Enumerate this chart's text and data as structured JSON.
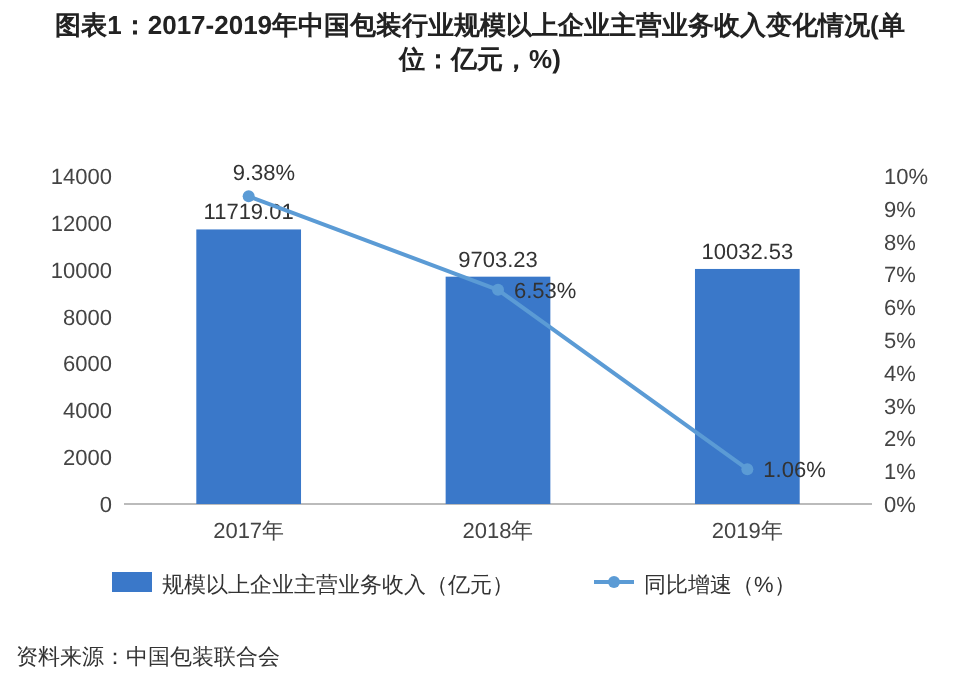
{
  "chart_data": {
    "type": "bar",
    "title": "图表1：2017-2019年中国包装行业规模以上企业主营业务收入变化情况(单位：亿元，%)",
    "categories": [
      "2017年",
      "2018年",
      "2019年"
    ],
    "series": [
      {
        "name": "规模以上企业主营业务收入（亿元）",
        "color": "#3a78c9",
        "values": [
          11719.01,
          9703.23,
          10032.53
        ]
      },
      {
        "name": "同比增速（%）",
        "type": "line",
        "axis": "y2",
        "color": "#5b9bd5",
        "marker": "circle",
        "values": [
          9.38,
          6.53,
          1.06
        ],
        "value_labels": [
          "9.38%",
          "6.53%",
          "1.06%"
        ]
      }
    ],
    "ylim": [
      0,
      14000
    ],
    "yticks": [
      0,
      2000,
      4000,
      6000,
      8000,
      10000,
      12000,
      14000
    ],
    "y2lim": [
      0,
      10
    ],
    "y2ticks": [
      {
        "value": 0,
        "label": "0%"
      },
      {
        "value": 1,
        "label": "1%"
      },
      {
        "value": 2,
        "label": "2%"
      },
      {
        "value": 3,
        "label": "3%"
      },
      {
        "value": 4,
        "label": "4%"
      },
      {
        "value": 5,
        "label": "5%"
      },
      {
        "value": 6,
        "label": "6%"
      },
      {
        "value": 7,
        "label": "7%"
      },
      {
        "value": 8,
        "label": "8%"
      },
      {
        "value": 9,
        "label": "9%"
      },
      {
        "value": 10,
        "label": "10%"
      }
    ],
    "data_labels": true,
    "grid": false,
    "legend": "bottom",
    "annotations": [
      "资料来源：中国包装联合会"
    ]
  }
}
